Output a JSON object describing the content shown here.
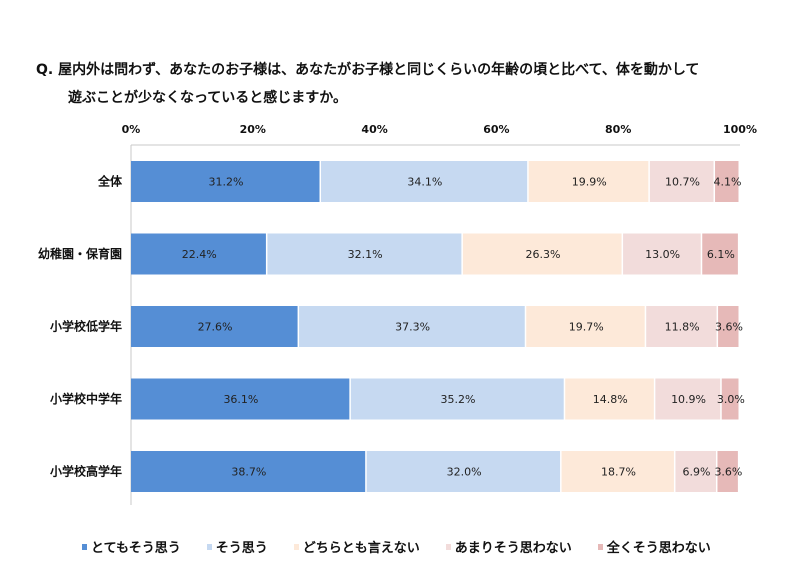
{
  "chart_data": {
    "type": "bar",
    "orientation": "horizontal",
    "stacked": true,
    "title_line1": "Q. 屋内外は問わず、あなたのお子様は、あなたがお子様と同じくらいの年齢の頃と比べて、体を動かして",
    "title_line2": "遊ぶことが少なくなっていると感じますか。",
    "categories": [
      "全体",
      "幼稚園・保育園",
      "小学校低学年",
      "小学校中学年",
      "小学校高学年"
    ],
    "xticks": [
      "0%",
      "20%",
      "40%",
      "60%",
      "80%",
      "100%"
    ],
    "xlim": [
      0,
      100
    ],
    "legend_position": "bottom",
    "series": [
      {
        "name": "とてもそう思う",
        "color": "#558ed5",
        "values": [
          31.2,
          22.4,
          27.6,
          36.1,
          38.7
        ]
      },
      {
        "name": "そう思う",
        "color": "#c6d9f1",
        "values": [
          34.1,
          32.1,
          37.3,
          35.2,
          32.0
        ]
      },
      {
        "name": "どちらとも言えない",
        "color": "#fde9d9",
        "values": [
          19.9,
          26.3,
          19.7,
          14.8,
          18.7
        ]
      },
      {
        "name": "あまりそう思わない",
        "color": "#f2dcdb",
        "values": [
          10.7,
          13.0,
          11.8,
          10.9,
          6.9
        ]
      },
      {
        "name": "全くそう思わない",
        "color": "#e6b9b8",
        "values": [
          4.1,
          6.1,
          3.6,
          3.0,
          3.6
        ]
      }
    ]
  }
}
